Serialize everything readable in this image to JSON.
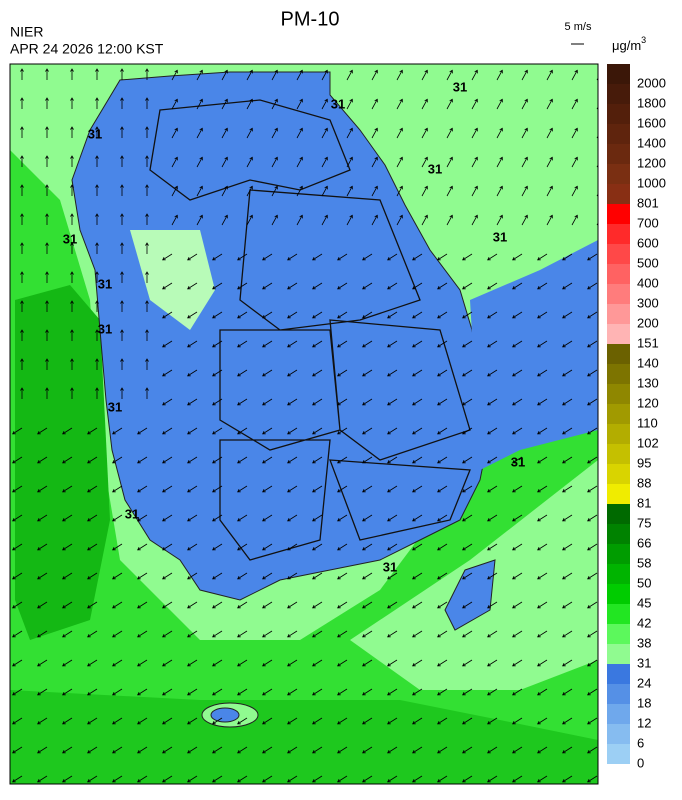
{
  "header": {
    "title": "PM-10",
    "agency": "NIER",
    "datetime": "APR 24 2026 12:00 KST",
    "wind_scale": "5 m/s",
    "unit": "μg/m",
    "unit_sup": "3"
  },
  "contour_labels": [
    31,
    31,
    31,
    31,
    31,
    31,
    31,
    31,
    31,
    31,
    31,
    31
  ],
  "colorbar": [
    {
      "label": 2000,
      "color": "#3b1708"
    },
    {
      "label": 1800,
      "color": "#471b0a"
    },
    {
      "label": 1600,
      "color": "#531f0b"
    },
    {
      "label": 1400,
      "color": "#5f240d"
    },
    {
      "label": 1200,
      "color": "#6b290f"
    },
    {
      "label": 1000,
      "color": "#7a2f12"
    },
    {
      "label": 801,
      "color": "#882f14"
    },
    {
      "label": 700,
      "color": "#ff0000"
    },
    {
      "label": 600,
      "color": "#ff2a2a"
    },
    {
      "label": 500,
      "color": "#ff4848"
    },
    {
      "label": 400,
      "color": "#ff6262"
    },
    {
      "label": 300,
      "color": "#ff7c7c"
    },
    {
      "label": 200,
      "color": "#ff9898"
    },
    {
      "label": 151,
      "color": "#ffb4b4"
    },
    {
      "label": 140,
      "color": "#6b6100"
    },
    {
      "label": 130,
      "color": "#7d7400"
    },
    {
      "label": 120,
      "color": "#8f8700"
    },
    {
      "label": 110,
      "color": "#a19a00"
    },
    {
      "label": 102,
      "color": "#b3ad00"
    },
    {
      "label": 95,
      "color": "#c5c000"
    },
    {
      "label": 88,
      "color": "#d9d400"
    },
    {
      "label": 81,
      "color": "#f0ec00"
    },
    {
      "label": 75,
      "color": "#006a00"
    },
    {
      "label": 66,
      "color": "#008200"
    },
    {
      "label": 58,
      "color": "#009c00"
    },
    {
      "label": 50,
      "color": "#00b400"
    },
    {
      "label": 45,
      "color": "#00cc00"
    },
    {
      "label": 42,
      "color": "#22e622"
    },
    {
      "label": 38,
      "color": "#5cf85c"
    },
    {
      "label": 31,
      "color": "#90fb90"
    },
    {
      "label": 24,
      "color": "#3a78e0"
    },
    {
      "label": 18,
      "color": "#5590e6"
    },
    {
      "label": 12,
      "color": "#6fa8ec"
    },
    {
      "label": 6,
      "color": "#86bcf0"
    },
    {
      "label": 0,
      "color": "#9ccff4"
    }
  ]
}
